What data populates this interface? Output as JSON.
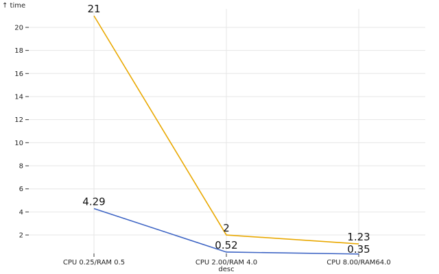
{
  "chart_data": {
    "type": "line",
    "title": "",
    "xlabel": "desc",
    "ylabel": "↑ time",
    "categories": [
      "CPU 0.25/RAM 0.5",
      "CPU 2.00/RAM 4.0",
      "CPU 8.00/RAM64.0"
    ],
    "ylim": [
      0.4,
      21.6
    ],
    "yticks": [
      2,
      4,
      6,
      8,
      10,
      12,
      14,
      16,
      18,
      20
    ],
    "grid": true,
    "series": [
      {
        "values": [
          21,
          2,
          1.23
        ],
        "labels": [
          "21",
          "2",
          "1.23"
        ],
        "color": "#e9a800"
      },
      {
        "values": [
          4.29,
          0.52,
          0.35
        ],
        "labels": [
          "4.29",
          "0.52",
          "0.35"
        ],
        "color": "#3d64c4"
      }
    ]
  }
}
